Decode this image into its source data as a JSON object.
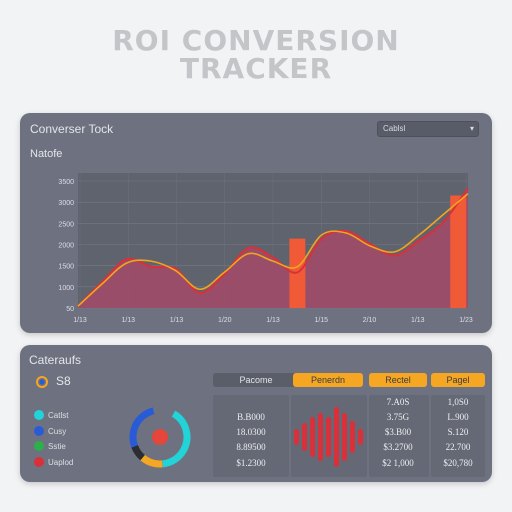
{
  "page": {
    "title_line1": "ROI CONVERSION",
    "title_line2": "TRACKER"
  },
  "top_panel": {
    "heading": "Converser Tock",
    "dropdown": {
      "value": "Cablsl"
    },
    "subheading": "Natofe"
  },
  "chart_data": {
    "type": "area",
    "y_tick_labels": [
      "3500",
      "3000",
      "2500",
      "2000",
      "1500",
      "1000",
      "50"
    ],
    "x_tick_labels": [
      "1/13",
      "1/13",
      "1/13",
      "1/20",
      "1/13",
      "1/15",
      "2/10",
      "1/13",
      "1/23"
    ],
    "x": [
      0,
      1,
      2,
      3,
      4,
      5,
      6,
      7,
      8,
      9,
      10,
      11,
      12,
      13,
      14,
      15,
      16
    ],
    "series": [
      {
        "values": [
          50,
          700,
          1300,
          1100,
          1050,
          400,
          900,
          1600,
          1350,
          950,
          1850,
          2050,
          1700,
          1400,
          1800,
          2300,
          3200
        ]
      },
      {
        "values": [
          50,
          650,
          1200,
          1250,
          1000,
          500,
          950,
          1450,
          1250,
          1100,
          1950,
          2000,
          1650,
          1500,
          1950,
          2500,
          3050
        ]
      }
    ],
    "highlight_bars": [
      {
        "x": 9,
        "value": 1850
      },
      {
        "x": 15.6,
        "value": 3000
      }
    ],
    "ylim": [
      0,
      3600
    ],
    "grid": true,
    "colors": {
      "area": "#a04a68",
      "line_red": "#d9303a",
      "line_yellow": "#f2a51c",
      "bar": "#f05a36"
    }
  },
  "bottom_panel": {
    "heading": "Cateraufs",
    "icon_value": "S8",
    "legend": [
      {
        "label": "Catlst",
        "color": "#22d3d8"
      },
      {
        "label": "Cusy",
        "color": "#2a5bd7"
      },
      {
        "label": "Sstie",
        "color": "#2bb04a"
      },
      {
        "label": "Uaplod",
        "color": "#d9303a"
      }
    ],
    "columns": [
      {
        "label": "Pacome",
        "color": "#5a5e69",
        "text_color": "#e2e4ea"
      },
      {
        "label": "Penerdn",
        "color": "#f5a623",
        "text_color": "#3a3d45"
      },
      {
        "label": "Rectel",
        "color": "#f5a623",
        "text_color": "#3a3d45"
      },
      {
        "label": "Pagel",
        "color": "#f5a623",
        "text_color": "#3a3d45"
      }
    ],
    "table": {
      "col1": [
        "",
        "B.B000",
        "18.0300",
        "8.89500",
        "$1.2300"
      ],
      "col3": [
        "7.A0S",
        "3.75G",
        "$3.B00",
        "$3.2700",
        "$2 1,000"
      ],
      "col4": [
        "1,0S0",
        "L.900",
        "S.120",
        "22.700",
        "$20,780"
      ]
    }
  }
}
